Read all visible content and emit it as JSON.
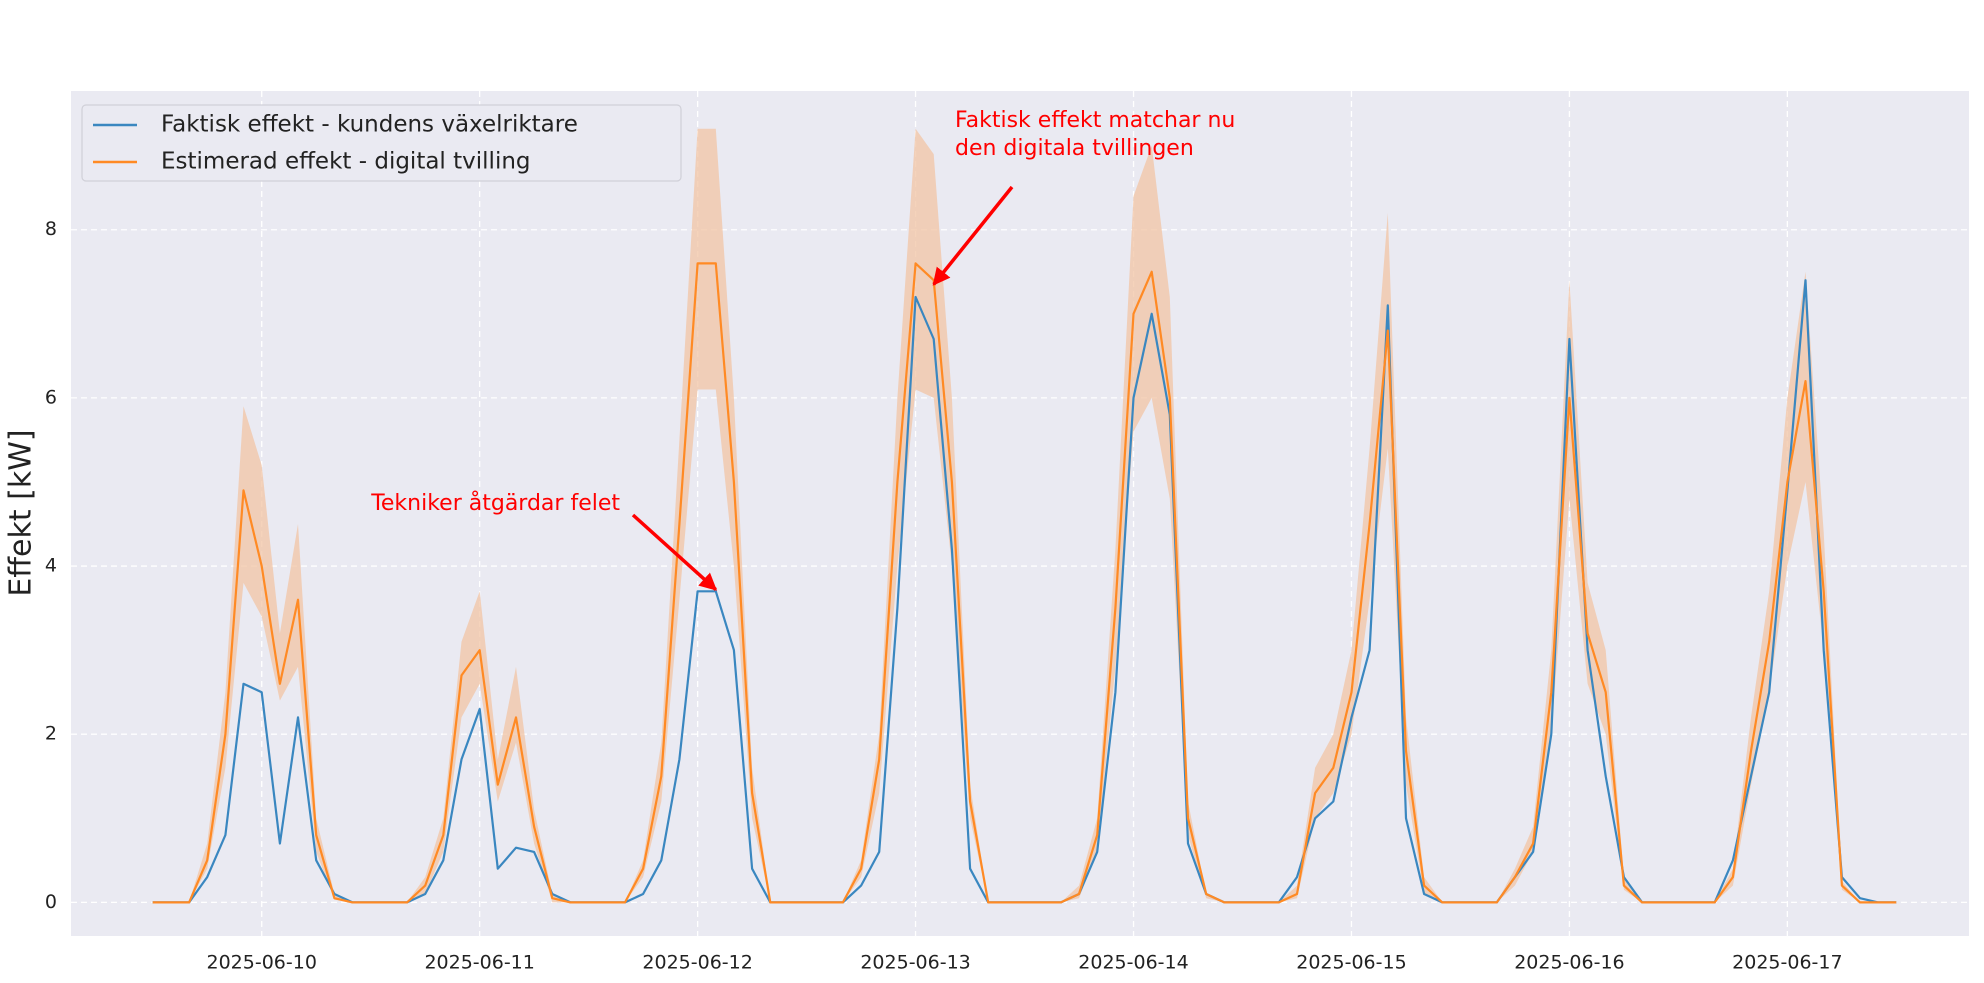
{
  "chart_data": {
    "type": "line",
    "ylabel": "Effekt [kW]",
    "x": [
      -12,
      -10,
      -8,
      -6,
      -4,
      -2,
      0,
      2,
      4,
      6,
      8,
      10,
      12,
      14,
      16,
      18,
      20,
      22,
      24,
      26,
      28,
      30,
      32,
      34,
      36,
      38,
      40,
      42,
      44,
      46,
      48,
      50,
      52,
      54,
      56,
      58,
      60,
      62,
      64,
      66,
      68,
      70,
      72,
      74,
      76,
      78,
      80,
      82,
      84,
      86,
      88,
      90,
      92,
      94,
      96,
      98,
      100,
      102,
      104,
      106,
      108,
      110,
      112,
      114,
      116,
      118,
      120,
      122,
      124,
      126,
      128,
      130,
      132,
      134,
      136,
      138,
      140,
      142,
      144,
      146,
      148,
      150,
      152,
      154,
      156,
      158,
      160,
      162,
      164,
      166,
      168,
      170,
      172,
      174,
      176,
      178,
      180
    ],
    "xlim": [
      -21,
      188
    ],
    "xticks": [
      {
        "value": 0,
        "label": "2025-06-10"
      },
      {
        "value": 24,
        "label": "2025-06-11"
      },
      {
        "value": 48,
        "label": "2025-06-12"
      },
      {
        "value": 72,
        "label": "2025-06-13"
      },
      {
        "value": 96,
        "label": "2025-06-14"
      },
      {
        "value": 120,
        "label": "2025-06-15"
      },
      {
        "value": 144,
        "label": "2025-06-16"
      },
      {
        "value": 168,
        "label": "2025-06-17"
      }
    ],
    "ylim": [
      -0.4,
      9.65
    ],
    "yticks": [
      0,
      2,
      4,
      6,
      8
    ],
    "grid": true,
    "legend": "upper left",
    "series": [
      {
        "name": "Faktisk effekt - kundens växelriktare",
        "color": "#3a87c0",
        "values": [
          0,
          0,
          0,
          0.3,
          0.8,
          2.6,
          2.5,
          0.7,
          2.2,
          0.5,
          0.1,
          0,
          0,
          0,
          0,
          0.1,
          0.5,
          1.7,
          2.3,
          0.4,
          0.65,
          0.6,
          0.1,
          0,
          0,
          0,
          0,
          0.1,
          0.5,
          1.7,
          3.7,
          3.7,
          3.0,
          0.4,
          0,
          0,
          0,
          0,
          0,
          0.2,
          0.6,
          3.5,
          7.2,
          6.7,
          4.2,
          0.4,
          0,
          0,
          0,
          0,
          0,
          0.1,
          0.6,
          2.5,
          6.0,
          7.0,
          5.8,
          0.7,
          0.1,
          0,
          0,
          0,
          0,
          0.3,
          1.0,
          1.2,
          2.2,
          3.0,
          7.1,
          1.0,
          0.1,
          0,
          0,
          0,
          0,
          0.3,
          0.6,
          2.0,
          6.7,
          3.0,
          1.5,
          0.3,
          0,
          0,
          0,
          0,
          0,
          0.5,
          1.5,
          2.5,
          4.9,
          7.4,
          3.0,
          0.3,
          0.05,
          0,
          0
        ]
      },
      {
        "name": "Estimerad effekt - digital tvilling",
        "color": "#ff8a24",
        "band_color": "#f2c4a4",
        "values": [
          0,
          0,
          0,
          0.5,
          2.0,
          4.9,
          4.0,
          2.6,
          3.6,
          0.8,
          0.05,
          0,
          0,
          0,
          0,
          0.2,
          0.8,
          2.7,
          3.0,
          1.4,
          2.2,
          0.9,
          0.05,
          0,
          0,
          0,
          0,
          0.4,
          1.5,
          4.5,
          7.6,
          7.6,
          5.0,
          1.3,
          0,
          0,
          0,
          0,
          0,
          0.4,
          1.7,
          5.0,
          7.6,
          7.4,
          5.0,
          1.2,
          0,
          0,
          0,
          0,
          0,
          0.1,
          0.8,
          3.5,
          7.0,
          7.5,
          6.0,
          1.0,
          0.1,
          0,
          0,
          0,
          0,
          0.1,
          1.3,
          1.6,
          2.5,
          4.5,
          6.8,
          1.8,
          0.2,
          0,
          0,
          0,
          0,
          0.3,
          0.7,
          2.5,
          6.0,
          3.2,
          2.5,
          0.2,
          0,
          0,
          0,
          0,
          0,
          0.3,
          1.8,
          3.1,
          5.0,
          6.2,
          3.7,
          0.2,
          0,
          0,
          0
        ],
        "lower": [
          0,
          0,
          0,
          0.4,
          1.6,
          3.8,
          3.4,
          2.4,
          2.8,
          0.6,
          0.03,
          0,
          0,
          0,
          0,
          0.1,
          0.6,
          2.2,
          2.6,
          1.2,
          1.9,
          0.7,
          0,
          0,
          0,
          0,
          0,
          0.3,
          1.2,
          3.6,
          6.1,
          6.1,
          4.0,
          1.0,
          0,
          0,
          0,
          0,
          0,
          0.3,
          1.3,
          4.0,
          6.1,
          6.0,
          4.0,
          1.0,
          0,
          0,
          0,
          0,
          0,
          0.05,
          0.6,
          2.8,
          5.6,
          6.0,
          4.8,
          0.8,
          0.05,
          0,
          0,
          0,
          0,
          0.05,
          1.0,
          1.3,
          2.0,
          3.6,
          5.4,
          1.4,
          0.1,
          0,
          0,
          0,
          0,
          0.2,
          0.6,
          2.0,
          4.8,
          2.6,
          2.0,
          0.15,
          0,
          0,
          0,
          0,
          0,
          0.2,
          1.4,
          2.5,
          4.0,
          5.0,
          3.0,
          0.15,
          0,
          0,
          0
        ],
        "upper": [
          0,
          0,
          0,
          0.7,
          2.5,
          5.9,
          5.2,
          3.2,
          4.5,
          1.0,
          0.1,
          0,
          0,
          0,
          0,
          0.3,
          1.0,
          3.1,
          3.7,
          1.7,
          2.8,
          1.1,
          0.1,
          0,
          0,
          0,
          0,
          0.5,
          1.9,
          5.5,
          9.2,
          9.2,
          6.0,
          1.6,
          0,
          0,
          0,
          0,
          0,
          0.5,
          2.0,
          6.0,
          9.2,
          8.9,
          6.0,
          1.4,
          0,
          0,
          0,
          0,
          0,
          0.2,
          1.0,
          4.2,
          8.4,
          9.0,
          7.2,
          1.2,
          0.1,
          0,
          0,
          0,
          0,
          0.2,
          1.6,
          2.0,
          3.0,
          5.4,
          8.2,
          2.2,
          0.3,
          0,
          0,
          0,
          0,
          0.4,
          0.9,
          3.0,
          7.4,
          3.8,
          3.0,
          0.3,
          0,
          0,
          0,
          0,
          0,
          0.4,
          2.2,
          3.7,
          6.0,
          7.5,
          4.4,
          0.25,
          0,
          0,
          0
        ]
      }
    ],
    "annotations": [
      {
        "text": [
          "Tekniker åtgärdar felet"
        ],
        "xy": [
          50,
          3.72
        ],
        "color": "#ff0000"
      },
      {
        "text": [
          "Faktisk effekt matchar nu",
          "den digitala tvillingen"
        ],
        "xy": [
          74,
          7.35
        ],
        "color": "#ff0000"
      }
    ]
  }
}
